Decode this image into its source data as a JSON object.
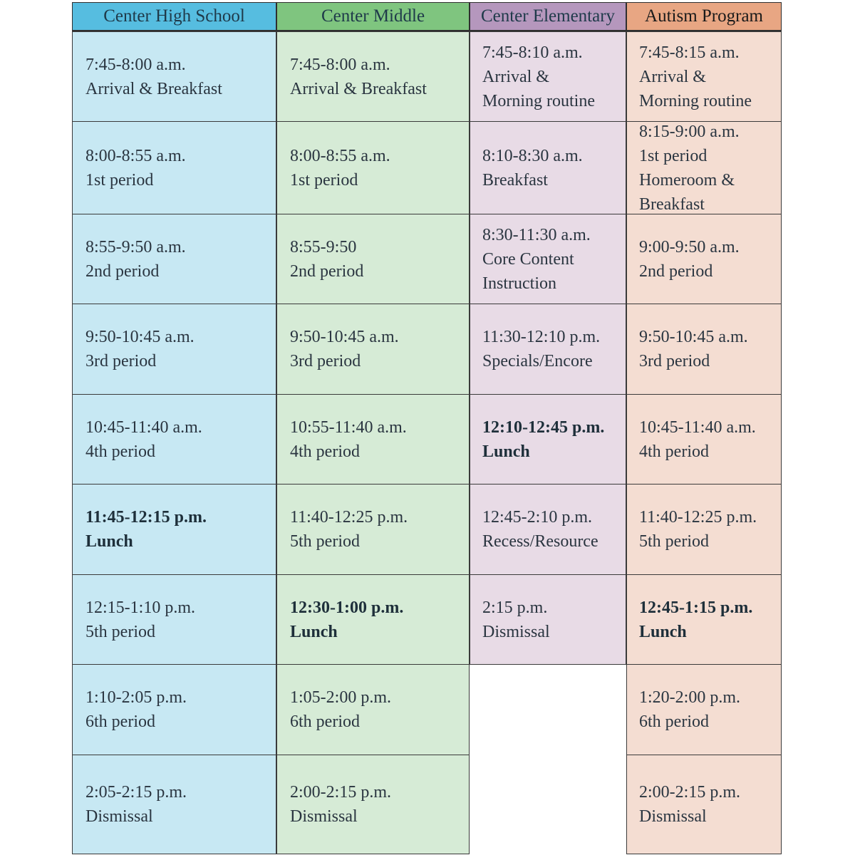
{
  "columns": [
    {
      "title": "Center High School",
      "rows": [
        {
          "time": "7:45-8:00 a.m.",
          "activity": "Arrival & Breakfast"
        },
        {
          "time": "8:00-8:55 a.m.",
          "activity": "1st period"
        },
        {
          "time": "8:55-9:50 a.m.",
          "activity": "2nd period"
        },
        {
          "time": "9:50-10:45 a.m.",
          "activity": "3rd period"
        },
        {
          "time": "10:45-11:40 a.m.",
          "activity": "4th period"
        },
        {
          "time": "11:45-12:15 p.m.",
          "activity": "Lunch"
        },
        {
          "time": "12:15-1:10 p.m.",
          "activity": "5th period"
        },
        {
          "time": "1:10-2:05 p.m.",
          "activity": "6th period"
        },
        {
          "time": "2:05-2:15 p.m.",
          "activity": "Dismissal"
        }
      ]
    },
    {
      "title": "Center Middle",
      "rows": [
        {
          "time": "7:45-8:00 a.m.",
          "activity": "Arrival & Breakfast"
        },
        {
          "time": "8:00-8:55 a.m.",
          "activity": "1st period"
        },
        {
          "time": "8:55-9:50",
          "activity": "2nd period"
        },
        {
          "time": "9:50-10:45 a.m.",
          "activity": "3rd period"
        },
        {
          "time": "10:55-11:40 a.m.",
          "activity": "4th period"
        },
        {
          "time": "11:40-12:25 p.m.",
          "activity": "5th period"
        },
        {
          "time": "12:30-1:00 p.m.",
          "activity": "Lunch"
        },
        {
          "time": "1:05-2:00 p.m.",
          "activity": "6th period"
        },
        {
          "time": "2:00-2:15 p.m.",
          "activity": "Dismissal"
        }
      ]
    },
    {
      "title": "Center Elementary",
      "rows": [
        {
          "time": "7:45-8:10 a.m.",
          "line2": "Arrival &",
          "line3": "Morning routine"
        },
        {
          "time": "8:10-8:30 a.m.",
          "activity": "Breakfast"
        },
        {
          "time": "8:30-11:30 a.m.",
          "line2": "Core Content",
          "line3": "Instruction"
        },
        {
          "time": "11:30-12:10 p.m.",
          "activity": "Specials/Encore"
        },
        {
          "time": "12:10-12:45 p.m.",
          "activity": "Lunch"
        },
        {
          "time": "12:45-2:10 p.m.",
          "activity": "Recess/Resource"
        },
        {
          "time": "2:15 p.m.",
          "activity": "Dismissal"
        }
      ]
    },
    {
      "title": "Autism Program",
      "rows": [
        {
          "time": "7:45-8:15 a.m.",
          "line2": "Arrival &",
          "line3": "Morning routine"
        },
        {
          "time": "8:15-9:00 a.m.",
          "line2": "1st period",
          "line3": "Homeroom &",
          "line4": "Breakfast"
        },
        {
          "time": "9:00-9:50 a.m.",
          "activity": "2nd period"
        },
        {
          "time": "9:50-10:45 a.m.",
          "activity": "3rd period"
        },
        {
          "time": "10:45-11:40 a.m.",
          "activity": "4th period"
        },
        {
          "time": "11:40-12:25 p.m.",
          "activity": "5th period"
        },
        {
          "time": "12:45-1:15 p.m.",
          "activity": "Lunch"
        },
        {
          "time": "1:20-2:00 p.m.",
          "activity": "6th period"
        },
        {
          "time": "2:00-2:15 p.m.",
          "activity": "Dismissal"
        }
      ]
    }
  ]
}
